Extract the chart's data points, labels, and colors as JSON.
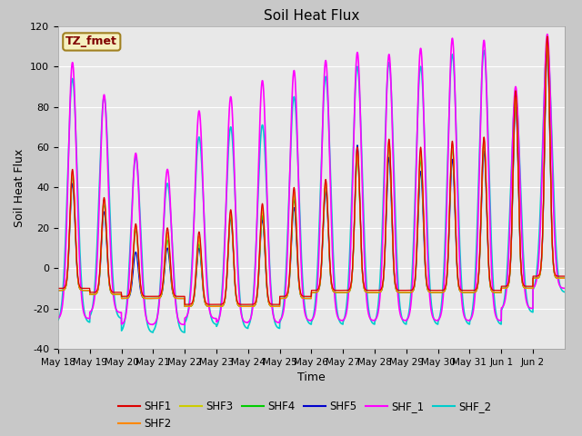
{
  "title": "Soil Heat Flux",
  "ylabel": "Soil Heat Flux",
  "xlabel": "Time",
  "ylim": [
    -40,
    120
  ],
  "yticks": [
    -40,
    -20,
    0,
    20,
    40,
    60,
    80,
    100,
    120
  ],
  "annotation_text": "TZ_fmet",
  "annotation_bg": "#f5f0c0",
  "annotation_border": "#a08020",
  "annotation_text_color": "#800000",
  "date_labels": [
    "May 18",
    "May 19",
    "May 20",
    "May 21",
    "May 22",
    "May 23",
    "May 24",
    "May 25",
    "May 26",
    "May 27",
    "May 28",
    "May 29",
    "May 30",
    "May 31",
    "Jun 1",
    "Jun 2"
  ],
  "n_days": 16,
  "series_colors": [
    "#dd0000",
    "#ff8800",
    "#cccc00",
    "#00cc00",
    "#0000cc",
    "#ff00ff",
    "#00cccc"
  ],
  "series_names": [
    "SHF1",
    "SHF2",
    "SHF3",
    "SHF4",
    "SHF5",
    "SHF_1",
    "SHF_2"
  ],
  "peaks": [
    [
      49,
      35,
      22,
      20,
      18,
      29,
      32,
      40,
      44,
      60,
      64,
      60,
      63,
      65,
      88,
      115
    ],
    [
      48,
      34,
      21,
      18,
      16,
      28,
      30,
      38,
      43,
      59,
      63,
      58,
      62,
      64,
      87,
      114
    ],
    [
      47,
      33,
      20,
      16,
      14,
      27,
      28,
      36,
      42,
      57,
      62,
      56,
      61,
      63,
      86,
      113
    ],
    [
      46,
      32,
      19,
      14,
      12,
      26,
      26,
      34,
      41,
      56,
      61,
      54,
      60,
      62,
      85,
      112
    ],
    [
      42,
      28,
      8,
      10,
      10,
      25,
      24,
      30,
      38,
      61,
      55,
      48,
      54,
      58,
      82,
      108
    ],
    [
      102,
      86,
      57,
      49,
      78,
      85,
      93,
      98,
      103,
      107,
      106,
      109,
      114,
      113,
      90,
      116
    ],
    [
      94,
      85,
      55,
      42,
      65,
      70,
      71,
      85,
      95,
      100,
      102,
      100,
      106,
      108,
      85,
      110
    ]
  ],
  "troughs_shf15": [
    -10,
    -13,
    -16,
    -16,
    -19,
    -20,
    -20,
    -16,
    -13,
    -13,
    -13,
    -13,
    -13,
    -13,
    -10,
    -5
  ],
  "troughs_shf1": [
    -10,
    -12,
    -14,
    -14,
    -18,
    -18,
    -18,
    -14,
    -11,
    -11,
    -11,
    -11,
    -11,
    -11,
    -9,
    -4
  ],
  "troughs_shf_1": [
    -25,
    -22,
    -28,
    -28,
    -25,
    -27,
    -27,
    -26,
    -26,
    -26,
    -26,
    -26,
    -26,
    -26,
    -20,
    -10
  ],
  "troughs_shf_2": [
    -27,
    -25,
    -32,
    -32,
    -28,
    -30,
    -30,
    -28,
    -28,
    -28,
    -28,
    -28,
    -28,
    -28,
    -22,
    -12
  ]
}
